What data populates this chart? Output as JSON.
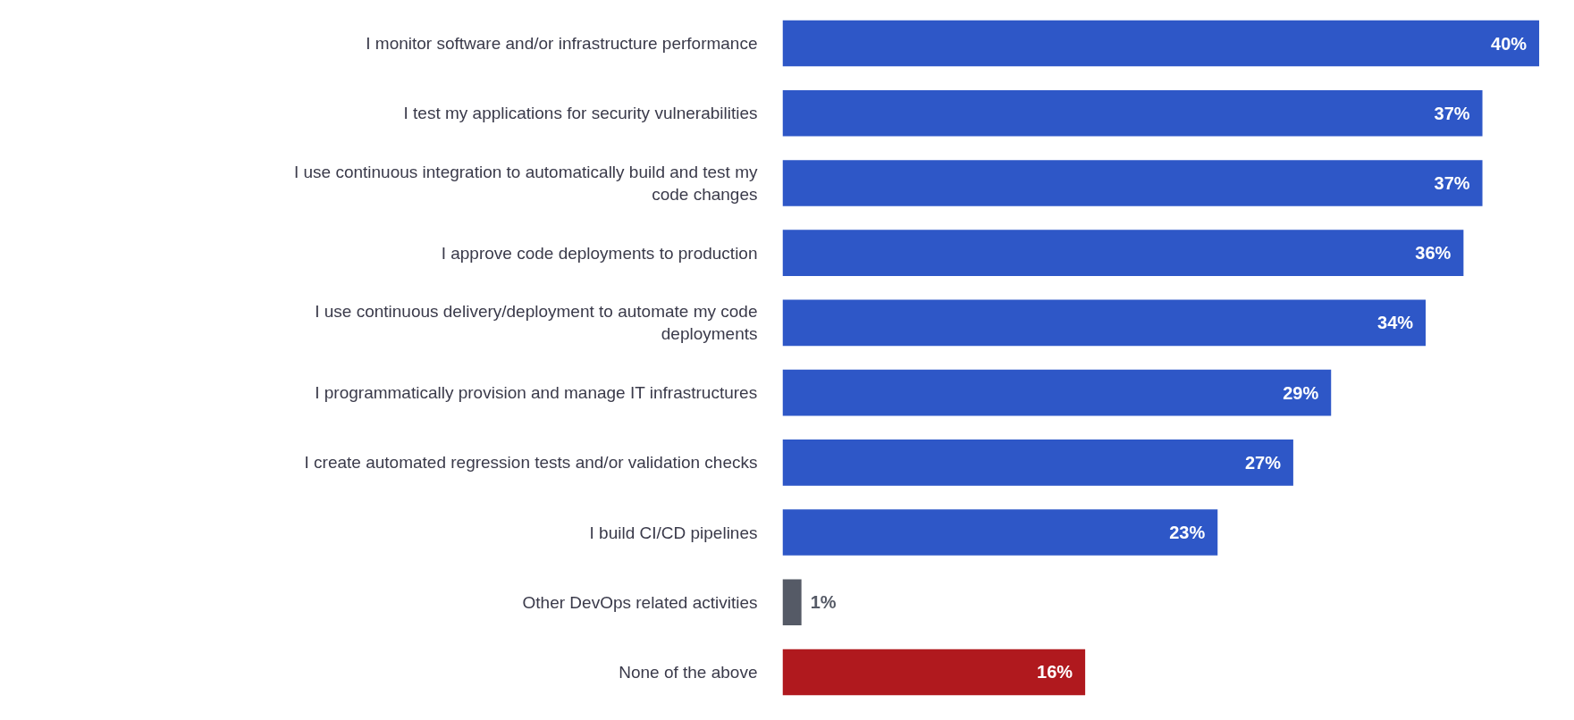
{
  "chart_data": {
    "type": "bar",
    "orientation": "horizontal",
    "categories": [
      "I monitor software and/or infrastructure performance",
      "I test my applications for security vulnerabilities",
      "I use continuous integration to automatically build and test my code changes",
      "I approve code deployments to production",
      "I use continuous delivery/deployment to automate my code deployments",
      "I programmatically provision and manage IT infrastructures",
      "I create automated regression tests and/or validation checks",
      "I build CI/CD pipelines",
      "Other DevOps related activities",
      "None of the above"
    ],
    "values": [
      40,
      37,
      37,
      36,
      34,
      29,
      27,
      23,
      1,
      16
    ],
    "colors": [
      "#2e57c7",
      "#2e57c7",
      "#2e57c7",
      "#2e57c7",
      "#2e57c7",
      "#2e57c7",
      "#2e57c7",
      "#2e57c7",
      "#555a66",
      "#b0191e"
    ],
    "value_labels": [
      "40%",
      "37%",
      "37%",
      "36%",
      "34%",
      "29%",
      "27%",
      "23%",
      "1%",
      "16%"
    ],
    "grid": false
  }
}
